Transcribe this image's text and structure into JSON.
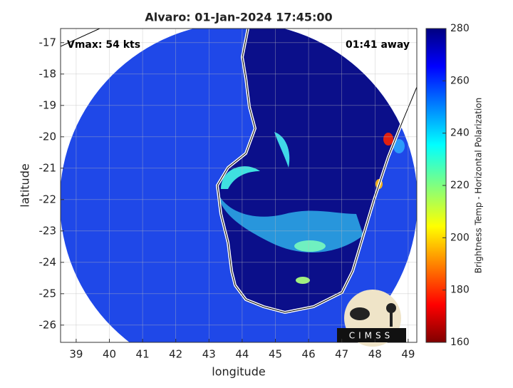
{
  "title": "Alvaro: 01-Jan-2024 17:45:00",
  "annotations": {
    "vmax": "Vmax: 54 kts",
    "away": "01:41 away"
  },
  "axes": {
    "xlabel": "longitude",
    "ylabel": "latitude",
    "xlim": [
      38.53,
      49.26
    ],
    "ylim": [
      -26.55,
      -16.55
    ],
    "xticks": [
      39,
      40,
      41,
      42,
      43,
      44,
      45,
      46,
      47,
      48,
      49
    ],
    "yticks": [
      -17,
      -18,
      -19,
      -20,
      -21,
      -22,
      -23,
      -24,
      -25,
      -26
    ]
  },
  "colorbar": {
    "label": "Brightness Temp - Horizontal Polarization",
    "lim": [
      160,
      280
    ],
    "ticks": [
      160,
      180,
      200,
      220,
      240,
      260,
      280
    ]
  },
  "logo": "CIMSS"
}
